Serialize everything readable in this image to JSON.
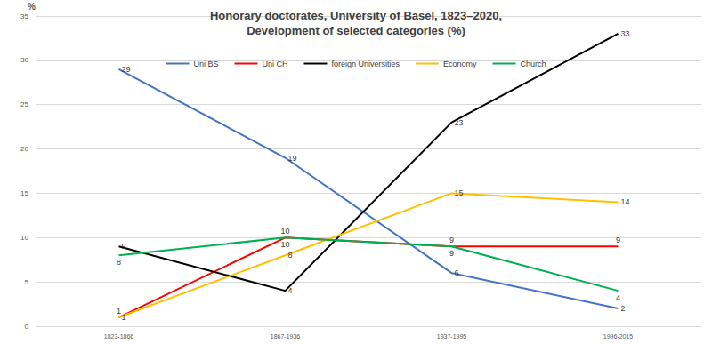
{
  "chart_data": {
    "type": "line",
    "title": "Honorary doctorates, University of Basel, 1823–2020,\nDevelopment of selected categories (%)",
    "y_label": "%",
    "categories": [
      "1823-1866",
      "1867-1936",
      "1937-1995",
      "1996-2015"
    ],
    "series": [
      {
        "name": "Uni BS",
        "color": "#4472C4",
        "values": [
          29,
          19,
          6,
          2
        ]
      },
      {
        "name": "Uni CH",
        "color": "#FF0000",
        "values": [
          1,
          10,
          9,
          9
        ]
      },
      {
        "name": "foreign Universities",
        "color": "#000000",
        "values": [
          9,
          4,
          23,
          33
        ]
      },
      {
        "name": "Economy",
        "color": "#FFC000",
        "values": [
          1,
          8,
          15,
          14
        ]
      },
      {
        "name": "Church",
        "color": "#00B050",
        "values": [
          8,
          10,
          9,
          4
        ]
      }
    ],
    "ylim": [
      0,
      35
    ],
    "yticks": [
      0,
      5,
      10,
      15,
      20,
      25,
      30,
      35
    ],
    "grid": true,
    "legend": "top",
    "data_labels": true
  }
}
